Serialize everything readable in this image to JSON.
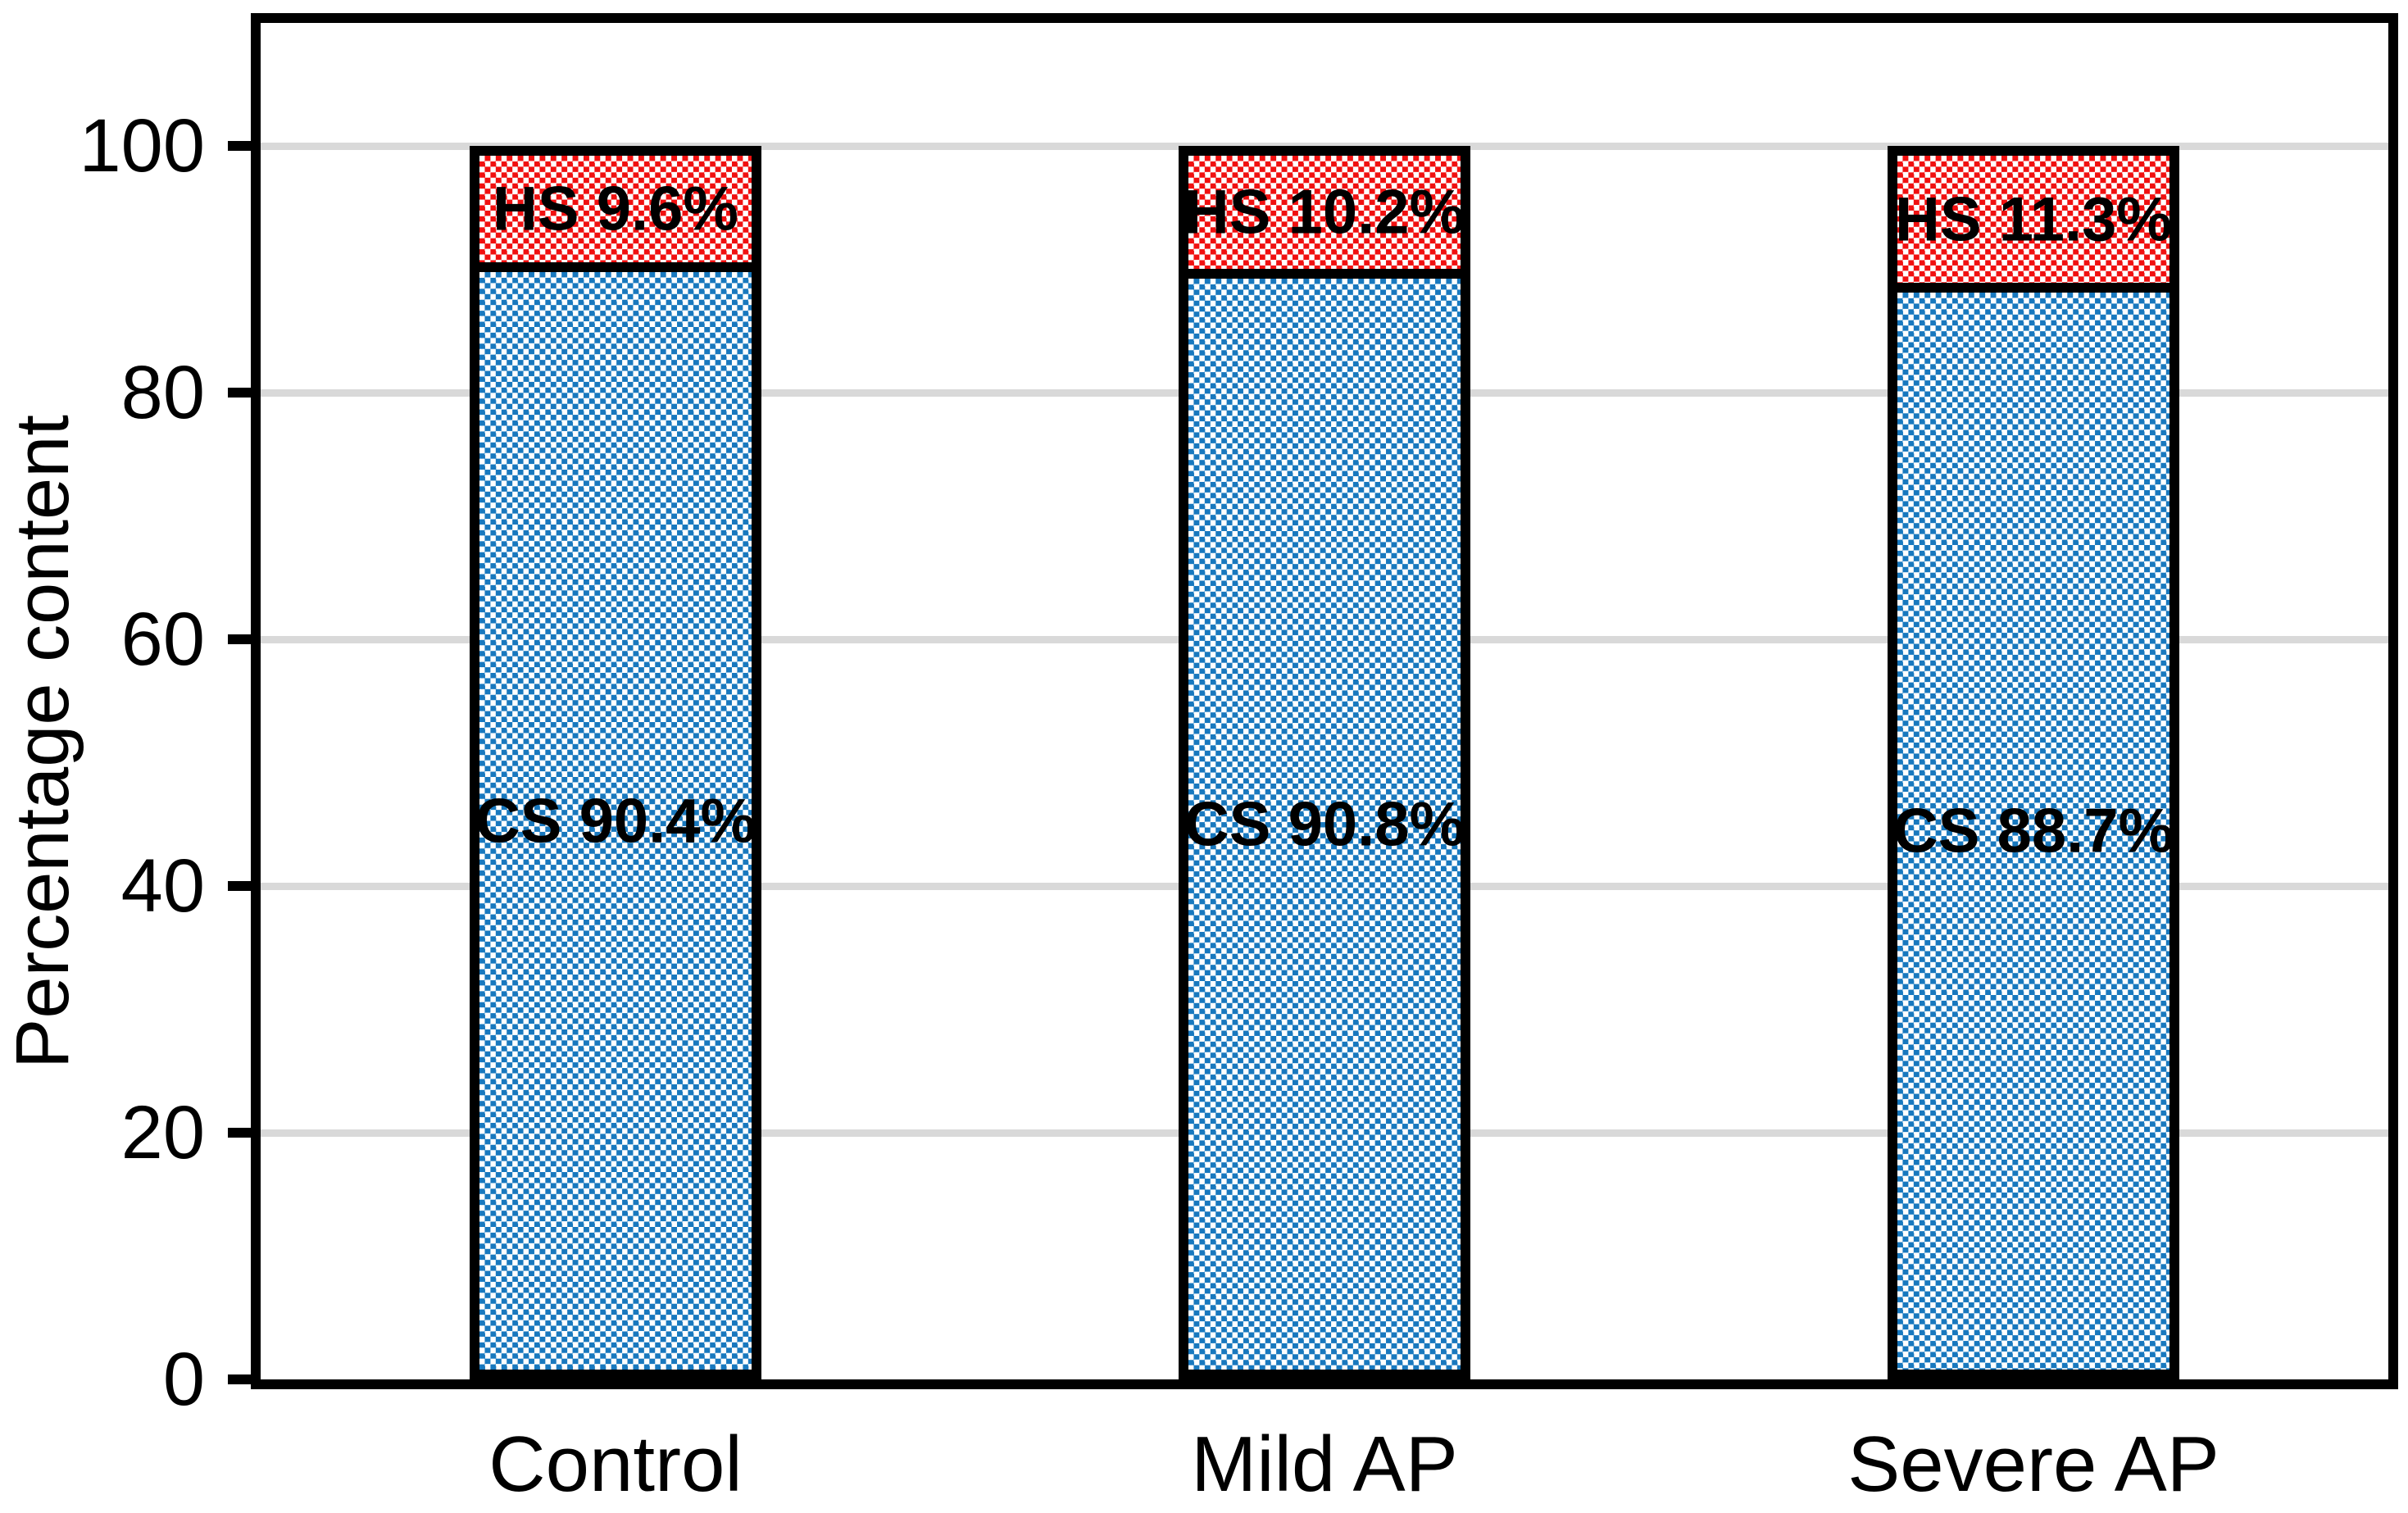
{
  "chart_data": {
    "type": "bar",
    "subtype": "stacked-100-percent",
    "title": "",
    "xlabel": "",
    "ylabel": "Percentage content",
    "categories": [
      "Control",
      "Mild AP",
      "Severe AP"
    ],
    "series": [
      {
        "name": "CS",
        "values": [
          90.4,
          90.8,
          88.7
        ],
        "data_labels": [
          "CS 90.4%",
          "CS 90.8%",
          "CS 88.7%"
        ],
        "color": "#1878BE",
        "pattern": "checkerboard-on-white"
      },
      {
        "name": "HS",
        "values": [
          9.6,
          10.2,
          11.3
        ],
        "data_labels": [
          "HS 9.6%",
          "HS 10.2%",
          "HS 11.3%"
        ],
        "color": "#F01010",
        "pattern": "checkerboard-on-white"
      }
    ],
    "ylim": [
      0,
      110
    ],
    "yticks": [
      0,
      20,
      40,
      60,
      80,
      100
    ],
    "ytick_labels": [
      "0",
      "20",
      "40",
      "60",
      "80",
      "100"
    ],
    "grid": true,
    "gridline_color": "#D9D9D9",
    "bar_outline_color": "#000000",
    "axis_color": "#000000",
    "background_color": "#FFFFFF",
    "legend_position": "none"
  }
}
